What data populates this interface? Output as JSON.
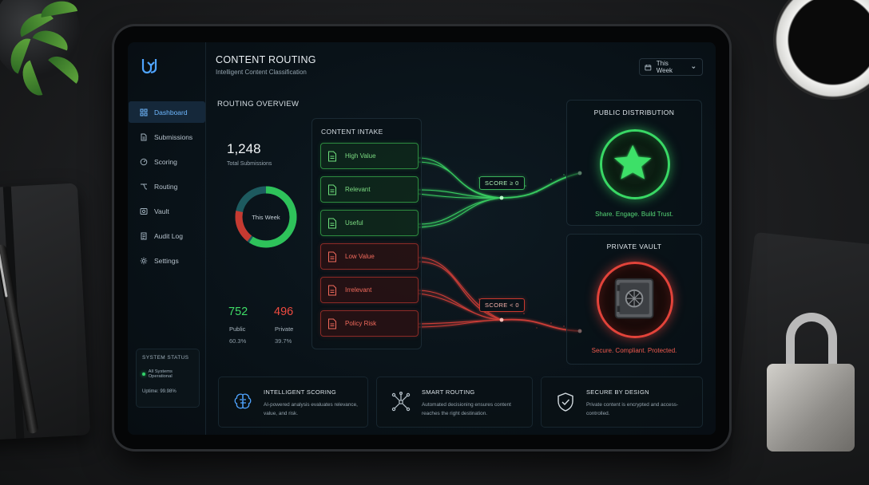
{
  "app": {
    "title": "CONTENT ROUTING",
    "subtitle": "Intelligent Content Classification",
    "period": "This Week"
  },
  "sidebar": {
    "items": [
      {
        "label": "Dashboard",
        "icon": "dashboard-icon",
        "active": true
      },
      {
        "label": "Submissions",
        "icon": "document-icon"
      },
      {
        "label": "Scoring",
        "icon": "scoring-icon"
      },
      {
        "label": "Routing",
        "icon": "routing-icon"
      },
      {
        "label": "Vault",
        "icon": "vault-icon"
      },
      {
        "label": "Audit Log",
        "icon": "audit-log-icon"
      },
      {
        "label": "Settings",
        "icon": "gear-icon"
      }
    ],
    "status": {
      "title": "SYSTEM STATUS",
      "state": "All Systems Operational",
      "uptime": "Uptime: 99.98%"
    }
  },
  "overview": {
    "title": "ROUTING OVERVIEW",
    "total": "1,248",
    "total_label": "Total Submissions",
    "donut_center": "This Week",
    "public": {
      "value": "752",
      "label": "Public",
      "pct": "60.3%",
      "fraction": 0.603
    },
    "private": {
      "value": "496",
      "label": "Private",
      "pct": "39.7%",
      "fraction": 0.397
    }
  },
  "intake": {
    "title": "CONTENT INTAKE",
    "items": [
      {
        "label": "High Value",
        "tone": "green",
        "icon": "document-icon"
      },
      {
        "label": "Relevant",
        "tone": "green",
        "icon": "document-icon"
      },
      {
        "label": "Useful",
        "tone": "green",
        "icon": "document-icon"
      },
      {
        "label": "Low Value",
        "tone": "red",
        "icon": "document-icon"
      },
      {
        "label": "Irrelevant",
        "tone": "red",
        "icon": "document-icon"
      },
      {
        "label": "Policy Risk",
        "tone": "red",
        "icon": "document-icon"
      }
    ]
  },
  "routes": {
    "public_rule": "SCORE ≥ 0",
    "private_rule": "SCORE < 0"
  },
  "destinations": {
    "public": {
      "title": "PUBLIC DISTRIBUTION",
      "tagline": "Share. Engage. Build Trust.",
      "icon": "star-icon"
    },
    "private": {
      "title": "PRIVATE VAULT",
      "tagline": "Secure. Compliant. Protected.",
      "icon": "safe-icon"
    }
  },
  "features": [
    {
      "title": "INTELLIGENT SCORING",
      "desc": "AI-powered analysis evaluates relevance, value, and risk.",
      "icon": "brain-icon"
    },
    {
      "title": "SMART ROUTING",
      "desc": "Automated decisioning ensures content reaches the right destination.",
      "icon": "network-icon"
    },
    {
      "title": "SECURE BY DESIGN",
      "desc": "Private content is encrypted and access-controlled.",
      "icon": "shield-check-icon"
    }
  ],
  "colors": {
    "accent_blue": "#5aa9ff",
    "public_green": "#3ee068",
    "private_red": "#e2433a",
    "donut_track": "#1d5a5f"
  }
}
